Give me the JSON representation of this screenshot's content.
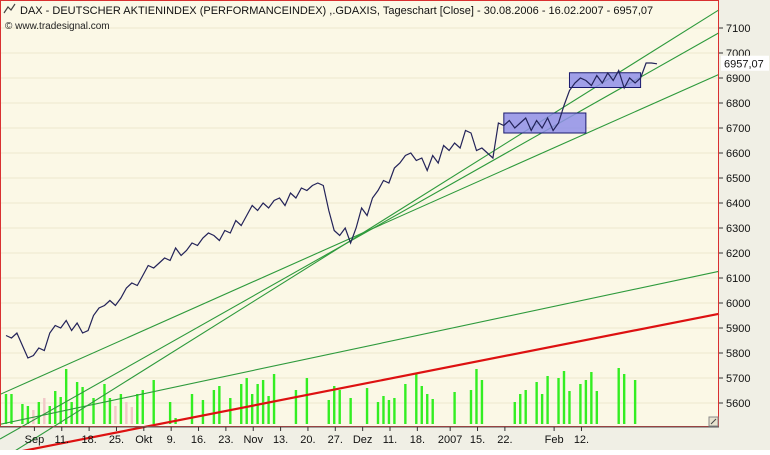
{
  "chart_data": {
    "type": "line",
    "title": "DAX - DEUTSCHER AKTIENINDEX (PERFORMANCEINDEX) ,.GDAXIS, Tageschart [Close] - 30.08.2006 - 16.02.2007 - 6957,07",
    "source": "© www.tradesignal.com",
    "last_value_label": "6957,07",
    "last_value": 6957.07,
    "ylim": [
      5540,
      7160
    ],
    "y_ticks": [
      5600,
      5700,
      5800,
      5900,
      6000,
      6100,
      6200,
      6300,
      6400,
      6500,
      6600,
      6700,
      6800,
      6900,
      7000,
      7100
    ],
    "x_tick_labels": [
      "Sep",
      "11.",
      "18.",
      "25.",
      "Okt",
      "9.",
      "16.",
      "23.",
      "Nov",
      "13.",
      "20.",
      "27.",
      "Dez",
      "11.",
      "18.",
      "2007",
      "15.",
      "22.",
      "Feb",
      "12."
    ],
    "colors": {
      "background": "#fbf8e6",
      "price_line": "#232359",
      "trend_lines": "#2e9a3c",
      "support_line": "#dd1111",
      "volume_up": "#33ee22",
      "volume_down": "#f2c8c8",
      "consolidation_box": "#8f8fe8"
    },
    "series": [
      {
        "values": [
          5870,
          5860,
          5880,
          5830,
          5780,
          5790,
          5820,
          5810,
          5880,
          5910,
          5900,
          5930,
          5890,
          5920,
          5880,
          5890,
          5950,
          5980,
          5990,
          6010,
          5990,
          6020,
          6060,
          6080,
          6070,
          6110,
          6150,
          6140,
          6160,
          6180,
          6170,
          6220,
          6190,
          6210,
          6240,
          6230,
          6260,
          6280,
          6270,
          6250,
          6290,
          6280,
          6330,
          6310,
          6350,
          6390,
          6370,
          6400,
          6380,
          6410,
          6420,
          6390,
          6440,
          6420,
          6460,
          6450,
          6470,
          6480,
          6470,
          6370,
          6290,
          6270,
          6300,
          6240,
          6300,
          6380,
          6350,
          6420,
          6450,
          6490,
          6480,
          6540,
          6560,
          6590,
          6600,
          6570,
          6580,
          6530,
          6590,
          6560,
          6630,
          6610,
          6640,
          6620,
          6690,
          6680,
          6610,
          6620,
          6600,
          6580,
          6720,
          6710,
          6730,
          6700,
          6720,
          6740,
          6690,
          6730,
          6700,
          6740,
          6690,
          6720,
          6790,
          6850,
          6880,
          6900,
          6890,
          6870,
          6910,
          6880,
          6920,
          6890,
          6930,
          6860,
          6900,
          6880,
          6900,
          6960,
          6960,
          6957
        ]
      }
    ],
    "volume": {
      "values": [
        30,
        30,
        0,
        20,
        18,
        14,
        22,
        26,
        18,
        33,
        27,
        55,
        22,
        42,
        37,
        0,
        26,
        0,
        40,
        26,
        18,
        30,
        22,
        17,
        30,
        34,
        0,
        44,
        0,
        0,
        22,
        6,
        0,
        0,
        30,
        0,
        24,
        0,
        34,
        38,
        0,
        26,
        0,
        40,
        46,
        30,
        40,
        44,
        28,
        50,
        0,
        0,
        0,
        34,
        0,
        46,
        0,
        0,
        0,
        24,
        38,
        34,
        0,
        26,
        0,
        0,
        36,
        0,
        22,
        28,
        24,
        26,
        0,
        40,
        0,
        50,
        38,
        30,
        25,
        0,
        0,
        0,
        32,
        0,
        0,
        34,
        55,
        44,
        0,
        0,
        0,
        0,
        0,
        22,
        30,
        34,
        0,
        42,
        30,
        48,
        0,
        46,
        53,
        33,
        0,
        40,
        44,
        52,
        33,
        0,
        0,
        0,
        56,
        50,
        0,
        44
      ],
      "up": [
        true,
        true,
        false,
        true,
        true,
        false,
        true,
        false,
        true,
        true,
        true,
        true,
        true,
        true,
        true,
        false,
        true,
        false,
        true,
        true,
        false,
        true,
        false,
        false,
        true,
        true,
        false,
        true,
        false,
        false,
        true,
        true,
        false,
        false,
        true,
        false,
        true,
        false,
        true,
        true,
        false,
        true,
        false,
        true,
        true,
        true,
        true,
        true,
        true,
        true,
        false,
        false,
        false,
        true,
        false,
        true,
        false,
        false,
        false,
        true,
        true,
        true,
        false,
        true,
        false,
        false,
        true,
        false,
        true,
        true,
        true,
        true,
        false,
        true,
        false,
        true,
        true,
        true,
        true,
        false,
        false,
        false,
        true,
        false,
        false,
        true,
        true,
        true,
        false,
        false,
        false,
        false,
        false,
        true,
        true,
        true,
        false,
        true,
        true,
        true,
        false,
        true,
        true,
        true,
        false,
        true,
        true,
        true,
        true,
        false,
        false,
        false,
        true,
        true,
        false,
        true
      ]
    }
  }
}
